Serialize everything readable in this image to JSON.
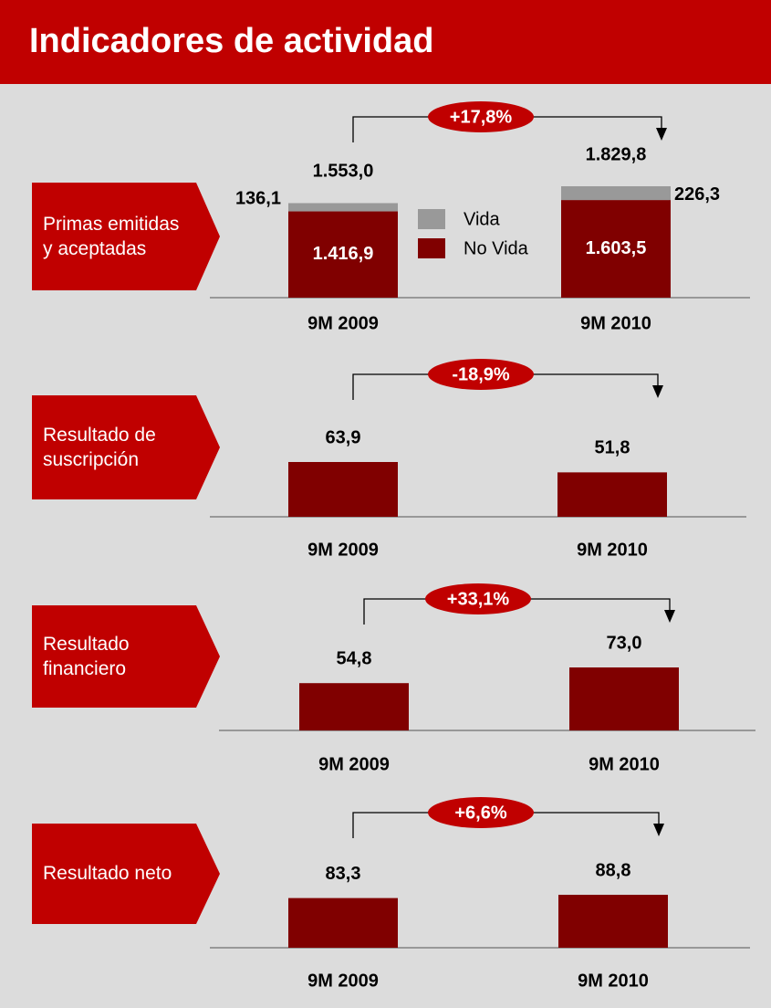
{
  "header": {
    "title": "Indicadores de actividad"
  },
  "chart_data": [
    {
      "type": "stacked_bar",
      "title": "Primas emitidas y aceptadas",
      "categories": [
        "9M 2009",
        "9M 2010"
      ],
      "series": [
        {
          "name": "Vida",
          "color": "#999999",
          "values": [
            136.1,
            226.3
          ],
          "value_labels": [
            "136,1",
            "226,3"
          ]
        },
        {
          "name": "No Vida",
          "color": "#800000",
          "values": [
            1416.9,
            1603.5
          ],
          "value_labels": [
            "1.416,9",
            "1.603,5"
          ]
        }
      ],
      "totals": [
        1553.0,
        1829.8
      ],
      "total_labels": [
        "1.553,0",
        "1.829,8"
      ],
      "change_label": "+17,8%",
      "legend": "center"
    },
    {
      "type": "bar",
      "title": "Resultado de suscripción",
      "categories": [
        "9M 2009",
        "9M 2010"
      ],
      "values": [
        63.9,
        51.8
      ],
      "value_labels": [
        "63,9",
        "51,8"
      ],
      "color": "#800000",
      "change_label": "-18,9%"
    },
    {
      "type": "bar",
      "title": "Resultado financiero",
      "categories": [
        "9M 2009",
        "9M 2010"
      ],
      "values": [
        54.8,
        73.0
      ],
      "value_labels": [
        "54,8",
        "73,0"
      ],
      "color": "#800000",
      "change_label": "+33,1%"
    },
    {
      "type": "bar",
      "title": "Resultado neto",
      "categories": [
        "9M 2009",
        "9M 2010"
      ],
      "values": [
        83.3,
        88.8
      ],
      "value_labels": [
        "83,3",
        "88,8"
      ],
      "color": "#800000",
      "change_label": "+6,6%"
    }
  ]
}
